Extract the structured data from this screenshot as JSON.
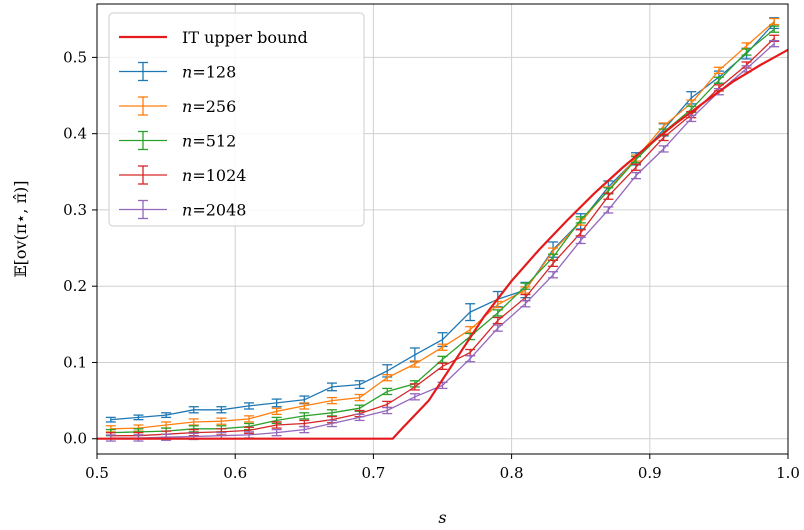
{
  "chart_data": {
    "type": "line",
    "xlabel": "s",
    "ylabel": "𝔼[ov(π⋆, π̂)]",
    "xlim": [
      0.5,
      1.0
    ],
    "ylim": [
      -0.02,
      0.57
    ],
    "xticks": [
      "0.5",
      "0.6",
      "0.7",
      "0.8",
      "0.9",
      "1.0"
    ],
    "yticks": [
      "0.0",
      "0.1",
      "0.2",
      "0.3",
      "0.4",
      "0.5"
    ],
    "grid": true,
    "legend_position": "top-left",
    "bound": {
      "name": "IT upper bound",
      "color": "#e41a1c",
      "x": [
        0.5,
        0.7,
        0.714,
        0.72,
        0.74,
        0.76,
        0.78,
        0.8,
        0.82,
        0.84,
        0.86,
        0.88,
        0.9,
        0.92,
        0.94,
        0.96,
        0.98,
        1.0
      ],
      "y": [
        0.0,
        0.0,
        0.0,
        0.012,
        0.05,
        0.105,
        0.16,
        0.207,
        0.248,
        0.286,
        0.322,
        0.355,
        0.386,
        0.415,
        0.442,
        0.468,
        0.49,
        0.51
      ]
    },
    "x": [
      0.51,
      0.53,
      0.55,
      0.57,
      0.59,
      0.61,
      0.63,
      0.65,
      0.67,
      0.69,
      0.71,
      0.73,
      0.75,
      0.77,
      0.79,
      0.81,
      0.83,
      0.85,
      0.87,
      0.89,
      0.91,
      0.93,
      0.95,
      0.97,
      0.99
    ],
    "series": [
      {
        "name": "n=128",
        "label_var": "n",
        "label_val": "=128",
        "color": "#1f77b4",
        "values": [
          0.025,
          0.028,
          0.031,
          0.038,
          0.038,
          0.043,
          0.047,
          0.051,
          0.068,
          0.071,
          0.089,
          0.11,
          0.13,
          0.166,
          0.183,
          0.195,
          0.248,
          0.285,
          0.33,
          0.367,
          0.405,
          0.447,
          0.474,
          0.505,
          0.545
        ],
        "errors": [
          0.003,
          0.003,
          0.003,
          0.004,
          0.004,
          0.004,
          0.005,
          0.005,
          0.005,
          0.005,
          0.008,
          0.009,
          0.009,
          0.011,
          0.01,
          0.01,
          0.01,
          0.01,
          0.008,
          0.008,
          0.008,
          0.008,
          0.008,
          0.007,
          0.007
        ]
      },
      {
        "name": "n=256",
        "label_var": "n",
        "label_val": "=256",
        "color": "#ff7f0e",
        "values": [
          0.013,
          0.014,
          0.018,
          0.022,
          0.023,
          0.026,
          0.036,
          0.043,
          0.05,
          0.054,
          0.08,
          0.098,
          0.12,
          0.143,
          0.176,
          0.195,
          0.246,
          0.284,
          0.326,
          0.368,
          0.41,
          0.44,
          0.483,
          0.515,
          0.547
        ]
      },
      {
        "name": "n=512",
        "label_var": "n",
        "label_val": "=512",
        "color": "#2ca02c",
        "values": [
          0.008,
          0.009,
          0.01,
          0.013,
          0.013,
          0.016,
          0.024,
          0.03,
          0.034,
          0.04,
          0.062,
          0.072,
          0.104,
          0.134,
          0.165,
          0.2,
          0.238,
          0.287,
          0.325,
          0.366,
          0.402,
          0.432,
          0.47,
          0.507,
          0.537
        ]
      },
      {
        "name": "n=1024",
        "label_var": "n",
        "label_val": "=1024",
        "color": "#d62728",
        "values": [
          0.004,
          0.004,
          0.006,
          0.008,
          0.009,
          0.011,
          0.018,
          0.02,
          0.025,
          0.033,
          0.045,
          0.068,
          0.095,
          0.113,
          0.155,
          0.185,
          0.23,
          0.27,
          0.318,
          0.356,
          0.395,
          0.425,
          0.46,
          0.49,
          0.525
        ]
      },
      {
        "name": "n=2048",
        "label_var": "n",
        "label_val": "=2048",
        "color": "#9467bd",
        "values": [
          0.001,
          0.001,
          0.002,
          0.003,
          0.004,
          0.005,
          0.008,
          0.012,
          0.02,
          0.028,
          0.037,
          0.055,
          0.07,
          0.105,
          0.145,
          0.177,
          0.215,
          0.26,
          0.3,
          0.345,
          0.38,
          0.42,
          0.455,
          0.485,
          0.518
        ]
      }
    ]
  }
}
